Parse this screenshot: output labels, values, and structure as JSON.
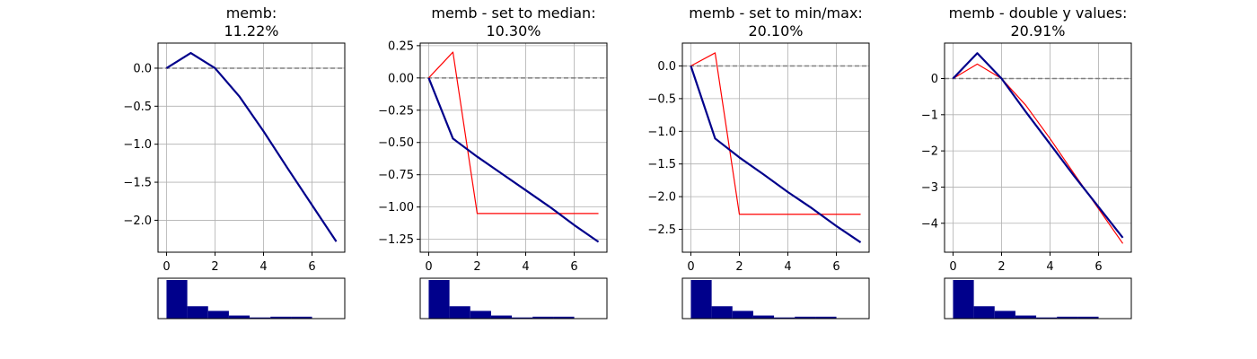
{
  "chart_data": [
    {
      "type": "line",
      "title_line1": "memb:",
      "title_line2": "11.22%",
      "xlim": [
        -0.35,
        7.35
      ],
      "ylim": [
        -2.42,
        0.33
      ],
      "xticks": [
        0,
        2,
        4,
        6
      ],
      "xtick_labels": [
        "0",
        "2",
        "4",
        "6"
      ],
      "yticks": [
        0.0,
        -0.5,
        -1.0,
        -1.5,
        -2.0
      ],
      "ytick_labels": [
        "0.0",
        "−0.5",
        "−1.0",
        "−1.5",
        "−2.0"
      ],
      "grid": true,
      "zero_line": 0,
      "series": [
        {
          "role": "modified",
          "color": "#ff0000",
          "x": [
            0,
            1,
            2,
            3,
            4,
            5,
            6,
            7
          ],
          "y": [
            0,
            0.2,
            0,
            -0.37,
            -0.83,
            -1.32,
            -1.8,
            -2.28
          ]
        },
        {
          "role": "original",
          "color": "#00008b",
          "x": [
            0,
            1,
            2,
            3,
            4,
            5,
            6,
            7
          ],
          "y": [
            0,
            0.2,
            0,
            -0.37,
            -0.83,
            -1.32,
            -1.8,
            -2.28
          ]
        }
      ],
      "histogram": [
        1.0,
        0.32,
        0.2,
        0.08,
        0.03,
        0.05,
        0.05
      ]
    },
    {
      "type": "line",
      "title_line1": "memb - set to median:",
      "title_line2": "10.30%",
      "xlim": [
        -0.35,
        7.35
      ],
      "ylim": [
        -1.35,
        0.27
      ],
      "xticks": [
        0,
        2,
        4,
        6
      ],
      "xtick_labels": [
        "0",
        "2",
        "4",
        "6"
      ],
      "yticks": [
        0.25,
        0.0,
        -0.25,
        -0.5,
        -0.75,
        -1.0,
        -1.25
      ],
      "ytick_labels": [
        "0.25",
        "0.00",
        "−0.25",
        "−0.50",
        "−0.75",
        "−1.00",
        "−1.25"
      ],
      "grid": true,
      "zero_line": 0,
      "series": [
        {
          "role": "modified",
          "color": "#ff0000",
          "x": [
            0,
            1,
            2,
            3,
            4,
            5,
            6,
            7
          ],
          "y": [
            0,
            0.2,
            -1.05,
            -1.05,
            -1.05,
            -1.05,
            -1.05,
            -1.05
          ]
        },
        {
          "role": "original",
          "color": "#00008b",
          "x": [
            0,
            1,
            2,
            3,
            4,
            5,
            6,
            7
          ],
          "y": [
            0,
            -0.47,
            -0.61,
            -0.74,
            -0.87,
            -1.0,
            -1.14,
            -1.27
          ]
        }
      ],
      "histogram": [
        1.0,
        0.32,
        0.2,
        0.08,
        0.03,
        0.05,
        0.05
      ]
    },
    {
      "type": "line",
      "title_line1": "memb - set to min/max:",
      "title_line2": "20.10%",
      "xlim": [
        -0.35,
        7.35
      ],
      "ylim": [
        -2.85,
        0.35
      ],
      "xticks": [
        0,
        2,
        4,
        6
      ],
      "xtick_labels": [
        "0",
        "2",
        "4",
        "6"
      ],
      "yticks": [
        0.0,
        -0.5,
        -1.0,
        -1.5,
        -2.0,
        -2.5
      ],
      "ytick_labels": [
        "0.0",
        "−0.5",
        "−1.0",
        "−1.5",
        "−2.0",
        "−2.5"
      ],
      "grid": true,
      "zero_line": 0,
      "series": [
        {
          "role": "modified",
          "color": "#ff0000",
          "x": [
            0,
            1,
            2,
            3,
            4,
            5,
            6,
            7
          ],
          "y": [
            0,
            0.2,
            -2.27,
            -2.27,
            -2.27,
            -2.27,
            -2.27,
            -2.27
          ]
        },
        {
          "role": "original",
          "color": "#00008b",
          "x": [
            0,
            1,
            2,
            3,
            4,
            5,
            6,
            7
          ],
          "y": [
            0,
            -1.11,
            -1.4,
            -1.66,
            -1.93,
            -2.18,
            -2.45,
            -2.7
          ]
        }
      ],
      "histogram": [
        1.0,
        0.32,
        0.2,
        0.08,
        0.03,
        0.05,
        0.05
      ]
    },
    {
      "type": "line",
      "title_line1": "memb - double y values:",
      "title_line2": "20.91%",
      "xlim": [
        -0.35,
        7.35
      ],
      "ylim": [
        -4.8,
        0.98
      ],
      "xticks": [
        0,
        2,
        4,
        6
      ],
      "xtick_labels": [
        "0",
        "2",
        "4",
        "6"
      ],
      "yticks": [
        0,
        -1,
        -2,
        -3,
        -4
      ],
      "ytick_labels": [
        "0",
        "−1",
        "−2",
        "−3",
        "−4"
      ],
      "grid": true,
      "zero_line": 0,
      "series": [
        {
          "role": "modified",
          "color": "#ff0000",
          "x": [
            0,
            1,
            2,
            3,
            4,
            5,
            6,
            7
          ],
          "y": [
            0,
            0.4,
            0,
            -0.74,
            -1.66,
            -2.64,
            -3.6,
            -4.56
          ]
        },
        {
          "role": "original",
          "color": "#00008b",
          "x": [
            0,
            1,
            2,
            3,
            4,
            5,
            6,
            7
          ],
          "y": [
            0,
            0.7,
            0,
            -0.92,
            -1.81,
            -2.7,
            -3.55,
            -4.4
          ]
        }
      ],
      "histogram": [
        1.0,
        0.32,
        0.2,
        0.08,
        0.03,
        0.05,
        0.05
      ]
    }
  ],
  "colors": {
    "grid": "#b0b0b0",
    "zero_line": "#808080",
    "histogram_bar": "#00008b",
    "axes": "#000000"
  }
}
